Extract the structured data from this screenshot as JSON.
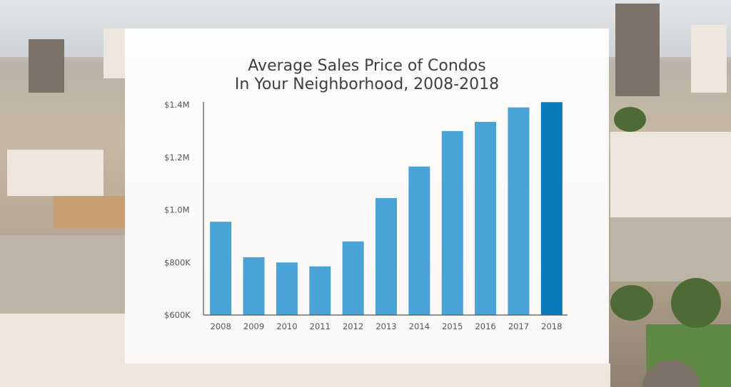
{
  "chart_data": {
    "type": "bar",
    "title": "Average Sales Price of Condos",
    "subtitle": "In Your Neighborhood, 2008-2018",
    "xlabel": "",
    "ylabel": "",
    "categories": [
      "2008",
      "2009",
      "2010",
      "2011",
      "2012",
      "2013",
      "2014",
      "2015",
      "2016",
      "2017",
      "2018"
    ],
    "values": [
      955000,
      820000,
      800000,
      785000,
      880000,
      1045000,
      1165000,
      1300000,
      1335000,
      1390000,
      1410000
    ],
    "ylim": [
      600000,
      1400000
    ],
    "yticks": [
      {
        "value": 600000,
        "label": "$600K"
      },
      {
        "value": 800000,
        "label": "$800K"
      },
      {
        "value": 1000000,
        "label": "$1.0M"
      },
      {
        "value": 1200000,
        "label": "$1.2M"
      },
      {
        "value": 1400000,
        "label": "$1.4M"
      }
    ],
    "grid": false,
    "legend": "none",
    "colors": {
      "bar": "#4aa3d6",
      "highlight": "#0a7ab8",
      "axis": "#555555"
    },
    "highlight_category": "2018"
  }
}
